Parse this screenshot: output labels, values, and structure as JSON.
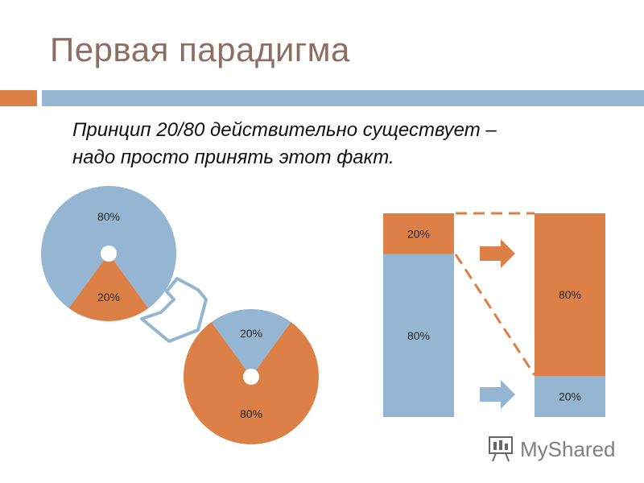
{
  "title": "Первая парадигма",
  "subtitle_line1": "Принцип 20/80 действительно существует –",
  "subtitle_line2": "надо просто принять этот факт.",
  "colors": {
    "orange": "#dd8047",
    "blue": "#94b6d2",
    "title": "#8c6f62",
    "arrow_outline": "#94b6d2"
  },
  "icons": {
    "curved_arrow": "curved-arrow-icon",
    "right_arrow_top": "right-arrow-icon",
    "right_arrow_bottom": "right-arrow-icon"
  },
  "chart_data": [
    {
      "type": "pie",
      "slices": [
        {
          "label": "80%",
          "value": 80,
          "color": "#94b6d2"
        },
        {
          "label": "20%",
          "value": 20,
          "color": "#dd8047"
        }
      ]
    },
    {
      "type": "pie",
      "slices": [
        {
          "label": "20%",
          "value": 20,
          "color": "#94b6d2"
        },
        {
          "label": "80%",
          "value": 80,
          "color": "#dd8047"
        }
      ]
    },
    {
      "type": "bar",
      "stacked": true,
      "bars": [
        {
          "segments": [
            {
              "label": "80%",
              "value": 80,
              "color": "#94b6d2"
            },
            {
              "label": "20%",
              "value": 20,
              "color": "#dd8047"
            }
          ]
        },
        {
          "segments": [
            {
              "label": "20%",
              "value": 20,
              "color": "#94b6d2"
            },
            {
              "label": "80%",
              "value": 80,
              "color": "#dd8047"
            }
          ]
        }
      ]
    }
  ],
  "watermark": "MyShared"
}
